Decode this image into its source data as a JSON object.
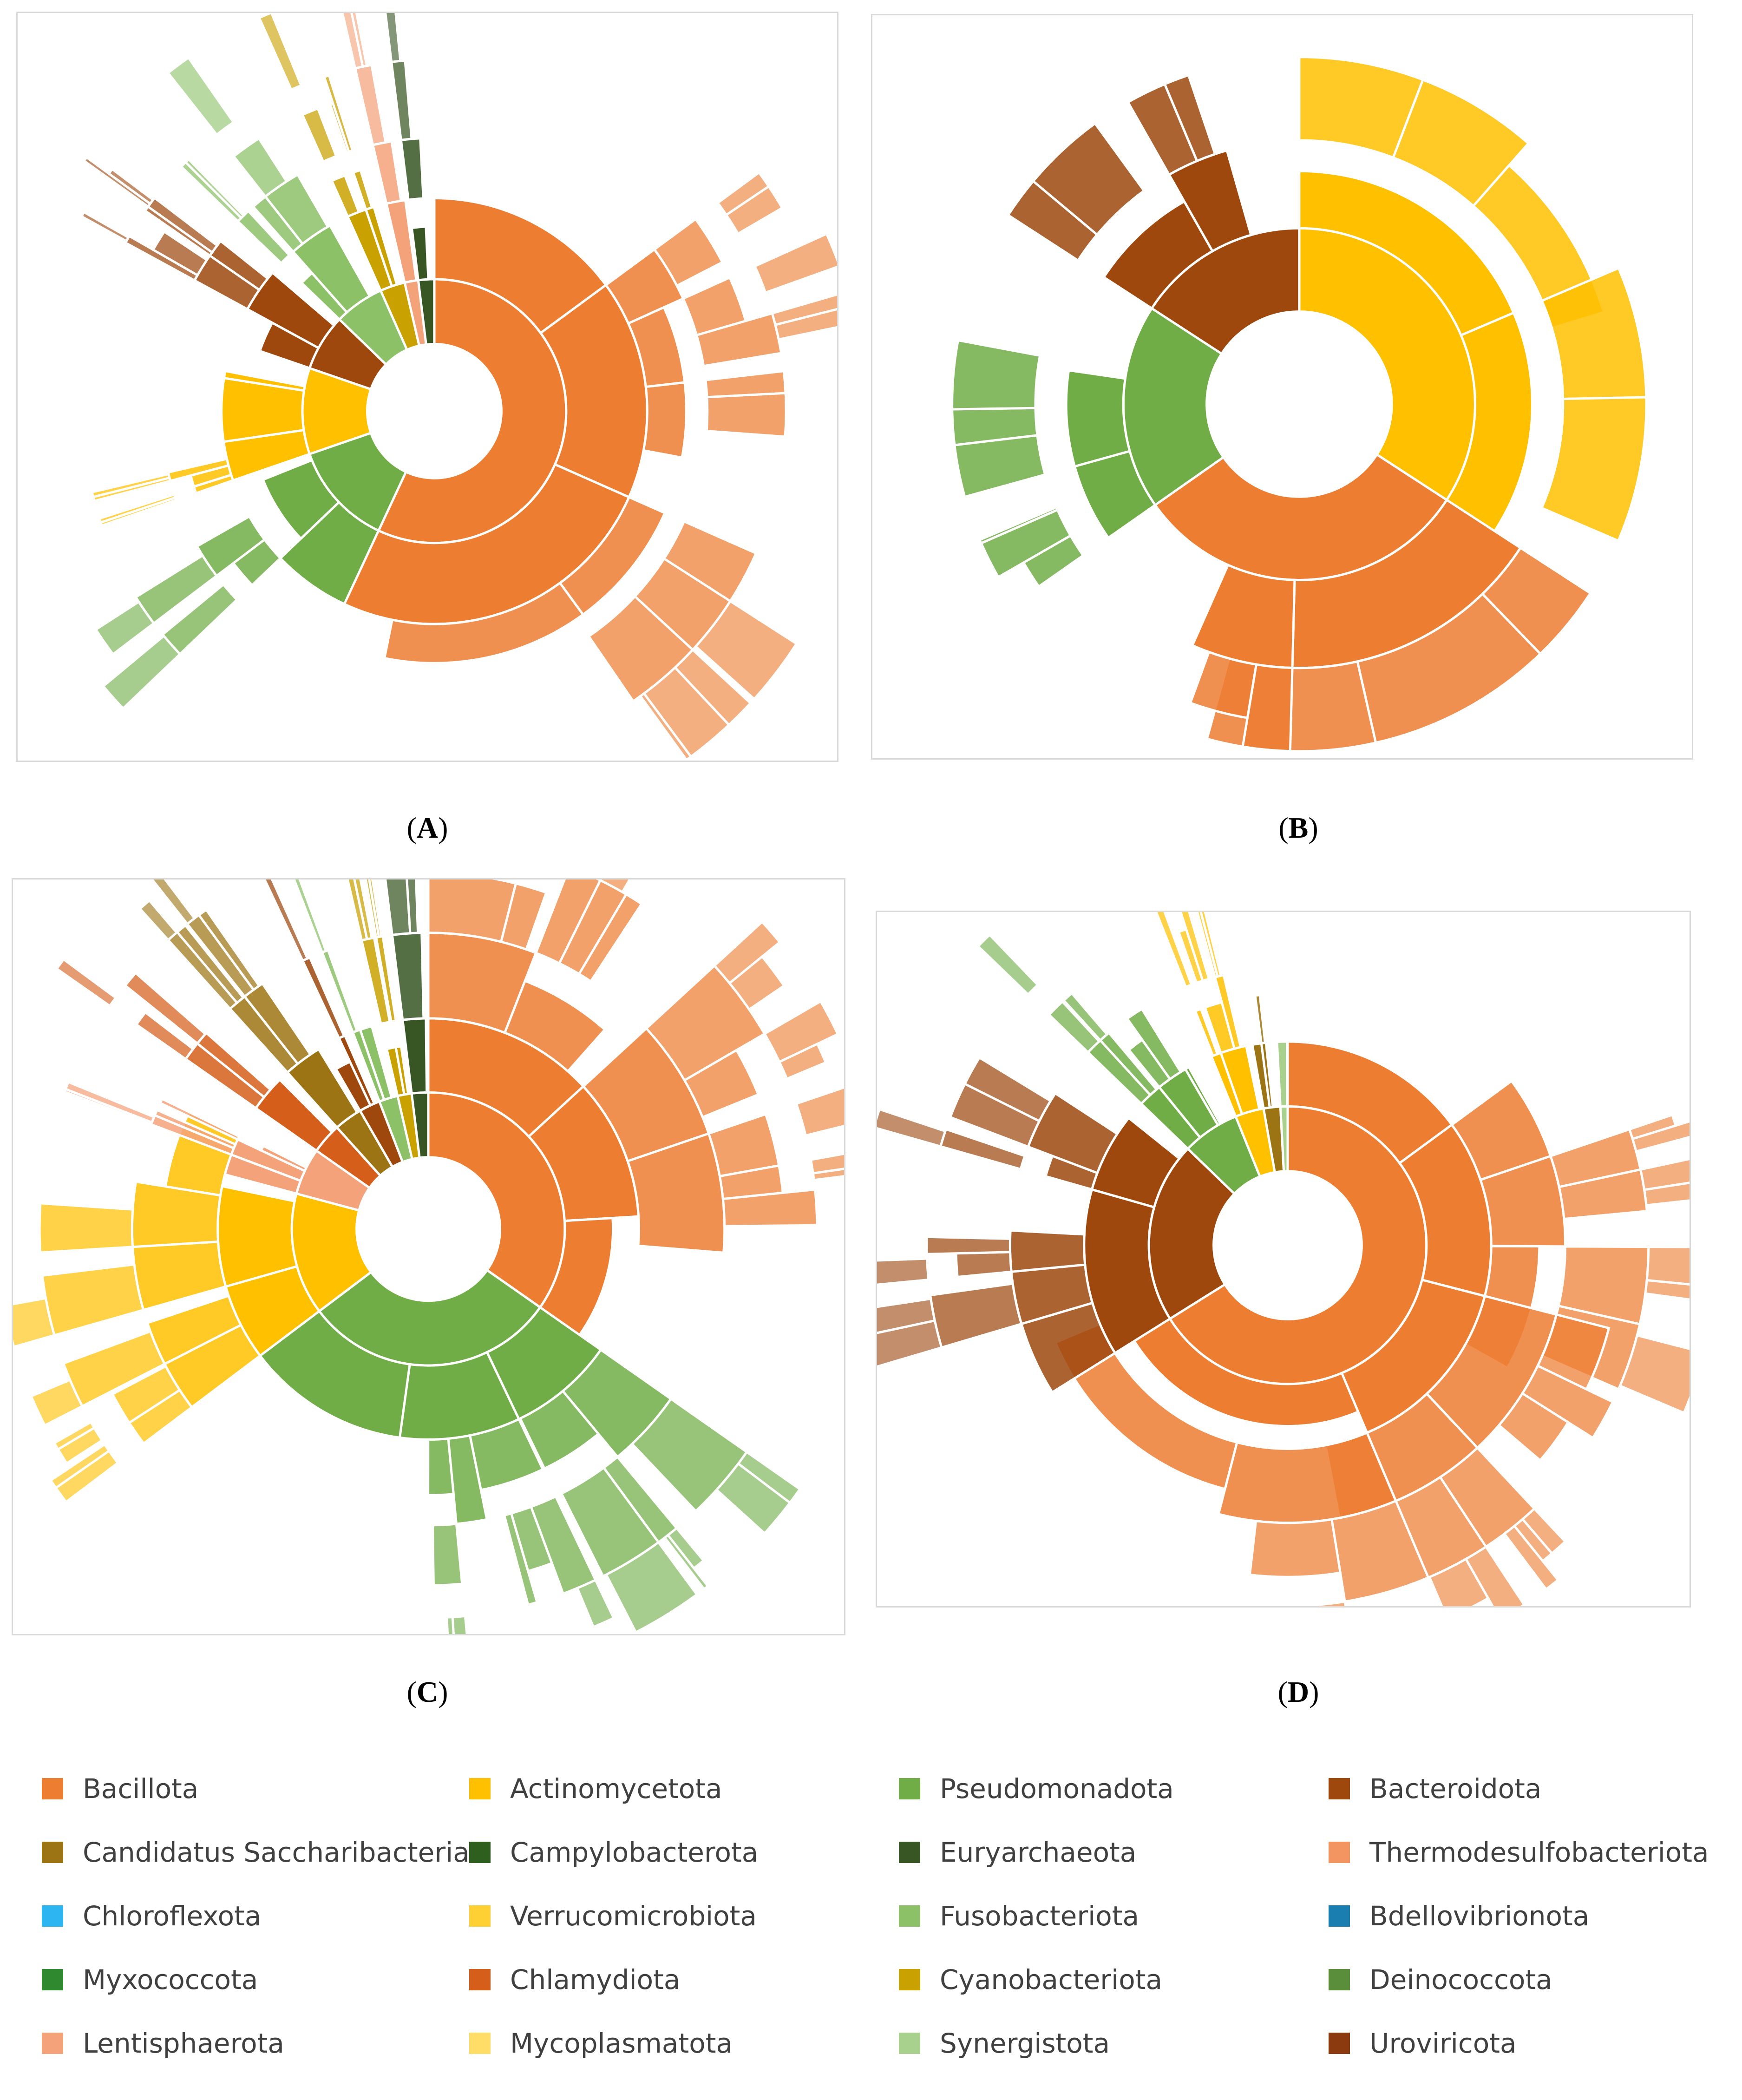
{
  "chart_data": [
    {
      "type": "sunburst",
      "panel": "A",
      "label_open": "(",
      "label": "A",
      "label_close": ")",
      "title": "",
      "rings": [
        {
          "level": "phylum",
          "values": [
            {
              "name": "Bacillota",
              "start_deg": 0,
              "end_deg": 205,
              "color": "#ED7D31"
            },
            {
              "name": "Pseudomonadota",
              "start_deg": 205,
              "end_deg": 251,
              "color": "#70AD47"
            },
            {
              "name": "Actinomycetota",
              "start_deg": 251,
              "end_deg": 289,
              "color": "#FFC000"
            },
            {
              "name": "Bacteroidota",
              "start_deg": 289,
              "end_deg": 314,
              "color": "#9E480E"
            },
            {
              "name": "Fusobacteriota",
              "start_deg": 314,
              "end_deg": 336,
              "color": "#8CC168"
            },
            {
              "name": "Cyanobacteriota",
              "start_deg": 336,
              "end_deg": 347,
              "color": "#C9A100"
            },
            {
              "name": "Thermodesulfobacteriota",
              "start_deg": 347,
              "end_deg": 353,
              "color": "#F4A27A"
            },
            {
              "name": "Euryarchaeota",
              "start_deg": 353,
              "end_deg": 360,
              "color": "#375623"
            }
          ]
        }
      ]
    },
    {
      "type": "sunburst",
      "panel": "B",
      "label_open": "(",
      "label": "B",
      "label_close": ")",
      "title": "",
      "rings": [
        {
          "level": "phylum",
          "values": [
            {
              "name": "Actinomycetota",
              "start_deg": 0,
              "end_deg": 123,
              "color": "#FFC000"
            },
            {
              "name": "Bacillota",
              "start_deg": 123,
              "end_deg": 235,
              "color": "#ED7D31"
            },
            {
              "name": "Pseudomonadota",
              "start_deg": 235,
              "end_deg": 303,
              "color": "#70AD47"
            },
            {
              "name": "Bacteroidota",
              "start_deg": 303,
              "end_deg": 360,
              "color": "#9E480E"
            }
          ]
        }
      ]
    },
    {
      "type": "sunburst",
      "panel": "C",
      "label_open": "(",
      "label": "C",
      "label_close": ")",
      "title": "",
      "rings": [
        {
          "level": "phylum",
          "values": [
            {
              "name": "Bacillota",
              "start_deg": 0,
              "end_deg": 125,
              "color": "#ED7D31"
            },
            {
              "name": "Pseudomonadota",
              "start_deg": 125,
              "end_deg": 233,
              "color": "#70AD47"
            },
            {
              "name": "Actinomycetota",
              "start_deg": 233,
              "end_deg": 285,
              "color": "#FFC000"
            },
            {
              "name": "Lentisphaerota",
              "start_deg": 285,
              "end_deg": 305,
              "color": "#F4A27A"
            },
            {
              "name": "Chlamydiota",
              "start_deg": 305,
              "end_deg": 318,
              "color": "#D55E1B"
            },
            {
              "name": "Candidatus Saccharibacteria",
              "start_deg": 318,
              "end_deg": 330,
              "color": "#9C7413"
            },
            {
              "name": "Bacteroidota",
              "start_deg": 330,
              "end_deg": 339,
              "color": "#9E480E"
            },
            {
              "name": "Fusobacteriota",
              "start_deg": 339,
              "end_deg": 347,
              "color": "#8CC168"
            },
            {
              "name": "Cyanobacteriota",
              "start_deg": 347,
              "end_deg": 353,
              "color": "#C9A100"
            },
            {
              "name": "Euryarchaeota",
              "start_deg": 353,
              "end_deg": 360,
              "color": "#375623"
            }
          ]
        }
      ]
    },
    {
      "type": "sunburst",
      "panel": "D",
      "label_open": "(",
      "label": "D",
      "label_close": ")",
      "title": "",
      "rings": [
        {
          "level": "phylum",
          "values": [
            {
              "name": "Bacillota",
              "start_deg": 0,
              "end_deg": 238,
              "color": "#ED7D31"
            },
            {
              "name": "Bacteroidota",
              "start_deg": 238,
              "end_deg": 314,
              "color": "#9E480E"
            },
            {
              "name": "Pseudomonadota",
              "start_deg": 314,
              "end_deg": 338,
              "color": "#70AD47"
            },
            {
              "name": "Actinomycetota",
              "start_deg": 338,
              "end_deg": 350,
              "color": "#FFC000"
            },
            {
              "name": "Candidatus Saccharibacteria",
              "start_deg": 350,
              "end_deg": 357,
              "color": "#9C7413"
            },
            {
              "name": "Synergistota",
              "start_deg": 357,
              "end_deg": 360,
              "color": "#A9D18E"
            }
          ]
        }
      ]
    }
  ],
  "legend": {
    "items": [
      {
        "label": "Bacillota",
        "color": "#ED7D31"
      },
      {
        "label": "Actinomycetota",
        "color": "#FFC000"
      },
      {
        "label": "Pseudomonadota",
        "color": "#70AD47"
      },
      {
        "label": "Bacteroidota",
        "color": "#9E480E"
      },
      {
        "label": "Candidatus Saccharibacteria",
        "color": "#9C7413"
      },
      {
        "label": "Campylobacterota",
        "color": "#2E5F1F"
      },
      {
        "label": "Euryarchaeota",
        "color": "#375623"
      },
      {
        "label": "Thermodesulfobacteriota",
        "color": "#F29560"
      },
      {
        "label": "Chloroflexota",
        "color": "#2DB5F2"
      },
      {
        "label": "Verrucomicrobiota",
        "color": "#FFD034"
      },
      {
        "label": "Fusobacteriota",
        "color": "#8CC168"
      },
      {
        "label": "Bdellovibrionota",
        "color": "#1A7FB0"
      },
      {
        "label": "Myxococcota",
        "color": "#2F8A2F"
      },
      {
        "label": "Chlamydiota",
        "color": "#D55E1B"
      },
      {
        "label": "Cyanobacteriota",
        "color": "#C9A100"
      },
      {
        "label": "Deinococcota",
        "color": "#5A8E3A"
      },
      {
        "label": "Lentisphaerota",
        "color": "#F4A27A"
      },
      {
        "label": "Mycoplasmatota",
        "color": "#FFDD66"
      },
      {
        "label": "Synergistota",
        "color": "#A9D18E"
      },
      {
        "label": "Uroviricota",
        "color": "#8B3A0F"
      }
    ]
  }
}
